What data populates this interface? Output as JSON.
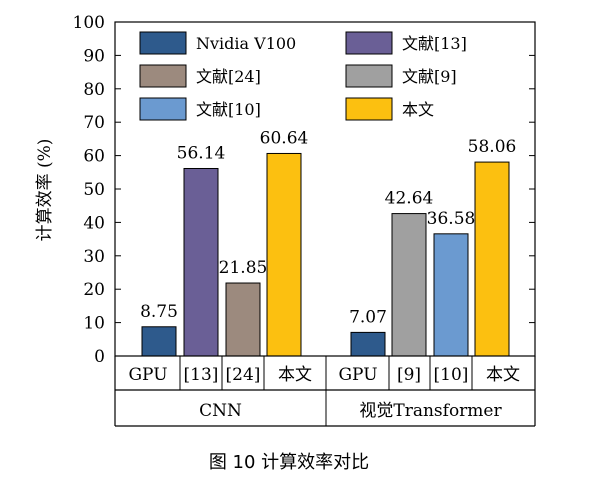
{
  "chart_data": {
    "type": "bar",
    "title": "",
    "ylabel": "计算效率 (%)",
    "ylim": [
      0,
      100
    ],
    "yticks": [
      "0",
      "10",
      "20",
      "30",
      "40",
      "50",
      "60",
      "70",
      "80",
      "90",
      "100"
    ],
    "caption": "图 10 计算效率对比",
    "series_colors": {
      "Nvidia V100": "#2e5a8c",
      "文献[13]": "#6a5f96",
      "文献[24]": "#9c8a7e",
      "文献[9]": "#a0a0a0",
      "文献[10]": "#6b9ad0",
      "本文": "#fcc010"
    },
    "legend": [
      {
        "label": "Nvidia V100",
        "color": "#2e5a8c"
      },
      {
        "label": "文献[13]",
        "color": "#6a5f96"
      },
      {
        "label": "文献[24]",
        "color": "#9c8a7e"
      },
      {
        "label": "文献[9]",
        "color": "#a0a0a0"
      },
      {
        "label": "文献[10]",
        "color": "#6b9ad0"
      },
      {
        "label": "本文",
        "color": "#fcc010"
      }
    ],
    "groups": [
      {
        "name": "CNN",
        "bars": [
          {
            "category": "GPU",
            "series": "Nvidia V100",
            "value": 8.75,
            "label": "8.75"
          },
          {
            "category": "[13]",
            "series": "文献[13]",
            "value": 56.14,
            "label": "56.14"
          },
          {
            "category": "[24]",
            "series": "文献[24]",
            "value": 21.85,
            "label": "21.85"
          },
          {
            "category": "本文",
            "series": "本文",
            "value": 60.64,
            "label": "60.64"
          }
        ]
      },
      {
        "name": "视觉Transformer",
        "bars": [
          {
            "category": "GPU",
            "series": "Nvidia V100",
            "value": 7.07,
            "label": "7.07"
          },
          {
            "category": "[9]",
            "series": "文献[9]",
            "value": 42.64,
            "label": "42.64"
          },
          {
            "category": "[10]",
            "series": "文献[10]",
            "value": 36.58,
            "label": "36.58"
          },
          {
            "category": "本文",
            "series": "本文",
            "value": 58.06,
            "label": "58.06"
          }
        ]
      }
    ]
  }
}
